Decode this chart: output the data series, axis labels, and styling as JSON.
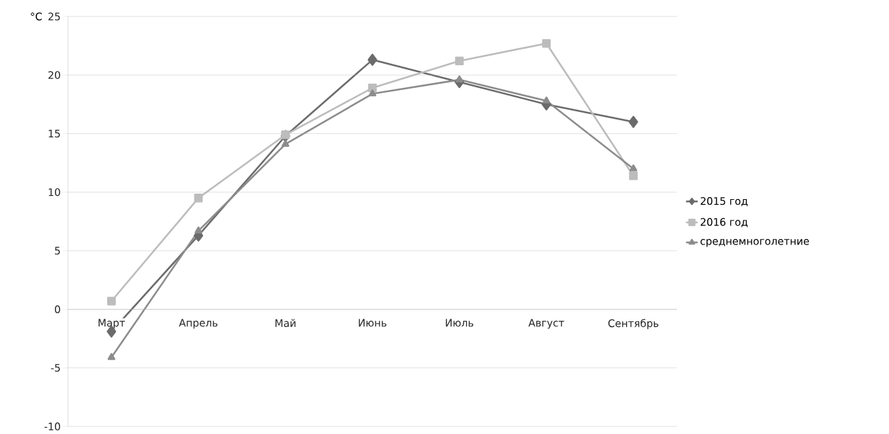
{
  "chart_data": {
    "type": "line",
    "ylabel": "°C",
    "categories": [
      "Март",
      "Апрель",
      "Май",
      "Июнь",
      "Июль",
      "Август",
      "Сентябрь"
    ],
    "series": [
      {
        "name": "2015 год",
        "color": "#6b6b6b",
        "marker": "diamond",
        "values": [
          -1.9,
          6.3,
          14.8,
          21.3,
          19.4,
          17.5,
          16.0
        ]
      },
      {
        "name": "2016 год",
        "color": "#bcbcbc",
        "marker": "square",
        "values": [
          0.7,
          9.5,
          14.9,
          18.9,
          21.2,
          22.7,
          11.4
        ]
      },
      {
        "name": "среднемноголетние",
        "color": "#8c8c8c",
        "marker": "triangle",
        "values": [
          -4.1,
          6.7,
          14.1,
          18.4,
          19.6,
          17.8,
          12.0
        ]
      }
    ],
    "ylim": [
      -10,
      25
    ],
    "yticks": [
      -10,
      -5,
      0,
      5,
      10,
      15,
      20,
      25
    ],
    "grid": "y",
    "legend": "right",
    "line_style": "solid"
  }
}
